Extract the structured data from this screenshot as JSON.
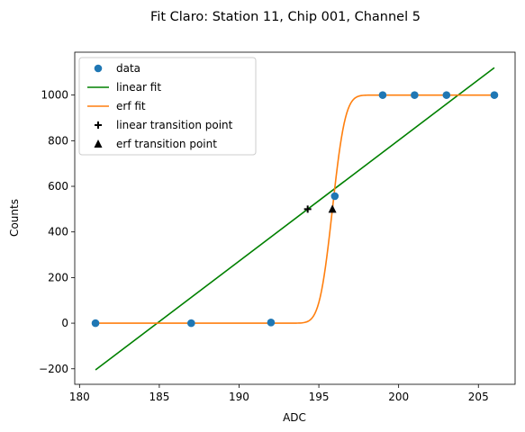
{
  "chart_data": {
    "type": "line",
    "title": "Fit Claro: Station 11, Chip 001, Channel 5",
    "xlabel": "ADC",
    "ylabel": "Counts",
    "xlim": [
      179.7,
      207.3
    ],
    "ylim": [
      -268,
      1188
    ],
    "xticks": [
      180,
      185,
      190,
      195,
      200,
      205
    ],
    "yticks": [
      -200,
      0,
      200,
      400,
      600,
      800,
      1000
    ],
    "grid": false,
    "legend_position": "top-left",
    "colors": {
      "data": "#1f77b4",
      "linear": "#008000",
      "erf": "#ff7f0e",
      "marker": "#000000"
    },
    "data_points": {
      "x": [
        181,
        187,
        192,
        196,
        199,
        201,
        203,
        206
      ],
      "y": [
        0,
        0,
        3,
        557,
        1000,
        1000,
        1000,
        1000
      ]
    },
    "linear_fit": {
      "x": [
        181,
        206
      ],
      "y": [
        -205,
        1120
      ]
    },
    "erf_fit": {
      "low": 0,
      "high": 1000,
      "center": 195.85,
      "width": 0.9,
      "x_range": [
        181,
        206
      ]
    },
    "linear_transition_point": {
      "x": 194.3,
      "y": 500
    },
    "erf_transition_point": {
      "x": 195.85,
      "y": 500
    },
    "legend": [
      {
        "key": "data",
        "label": "data",
        "marker": "circle"
      },
      {
        "key": "linear",
        "label": "linear fit",
        "marker": "line"
      },
      {
        "key": "erf",
        "label": "erf fit",
        "marker": "line"
      },
      {
        "key": "ltp",
        "label": "linear transition point",
        "marker": "plus"
      },
      {
        "key": "etp",
        "label": "erf transition point",
        "marker": "triangle"
      }
    ]
  }
}
